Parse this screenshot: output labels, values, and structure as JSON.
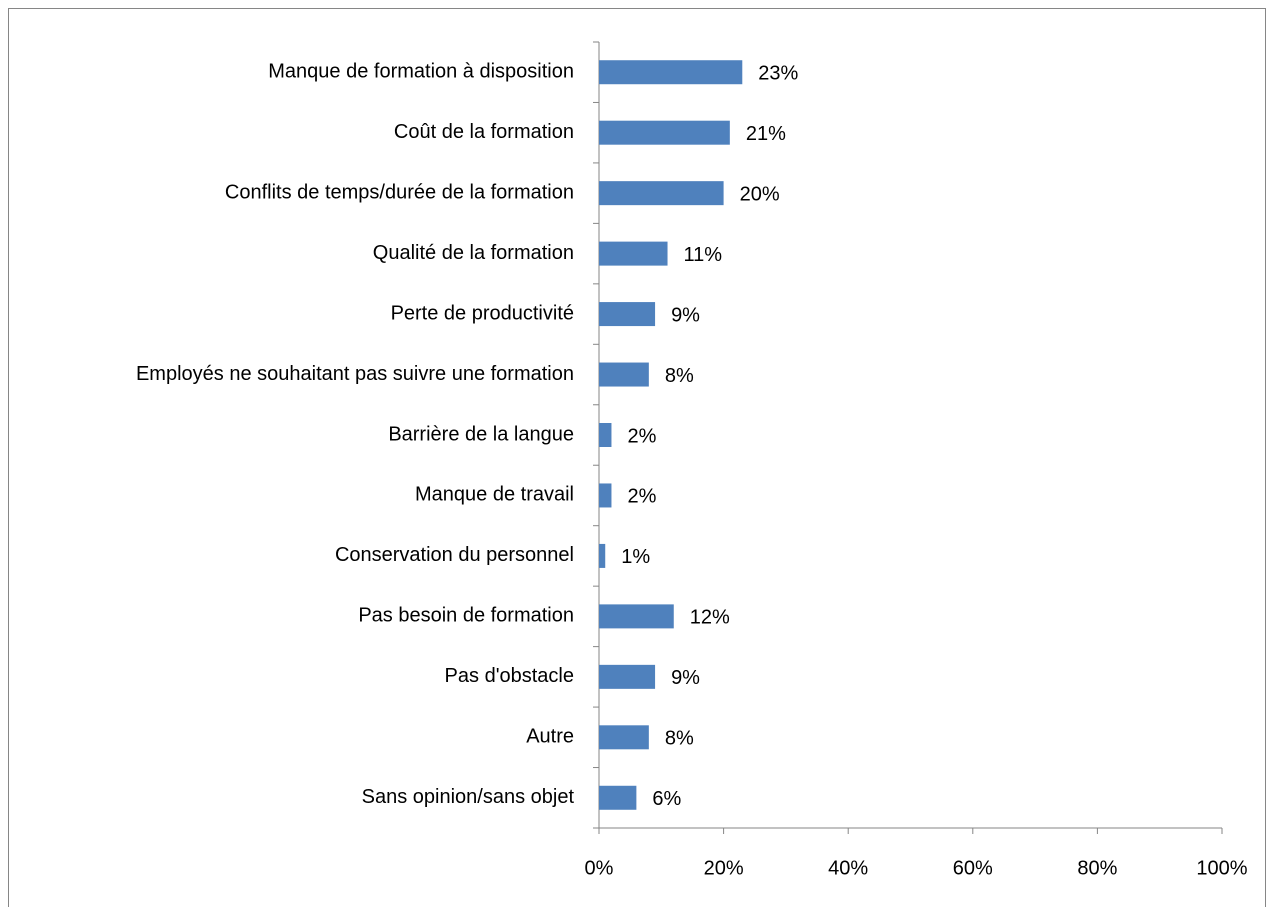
{
  "chart_data": {
    "type": "bar",
    "orientation": "horizontal",
    "categories": [
      "Manque de formation à disposition",
      "Coût de la formation",
      "Conflits de temps/durée de la formation",
      "Qualité de la formation",
      "Perte de productivité",
      "Employés ne souhaitant pas suivre une formation",
      "Barrière de la langue",
      "Manque de travail",
      "Conservation du personnel",
      "Pas besoin de formation",
      "Pas d'obstacle",
      "Autre",
      "Sans opinion/sans objet"
    ],
    "values": [
      23,
      21,
      20,
      11,
      9,
      8,
      2,
      2,
      1,
      12,
      9,
      8,
      6
    ],
    "value_labels": [
      "23%",
      "21%",
      "20%",
      "11%",
      "9%",
      "8%",
      "2%",
      "2%",
      "1%",
      "12%",
      "9%",
      "8%",
      "6%"
    ],
    "color": "#4f81bd",
    "xlim": [
      0,
      100
    ],
    "xticks": [
      {
        "value": 0,
        "label": "0%"
      },
      {
        "value": 20,
        "label": "20%"
      },
      {
        "value": 40,
        "label": "40%"
      },
      {
        "value": 60,
        "label": "60%"
      },
      {
        "value": 80,
        "label": "80%"
      },
      {
        "value": 100,
        "label": "100%"
      }
    ],
    "grid": false
  }
}
